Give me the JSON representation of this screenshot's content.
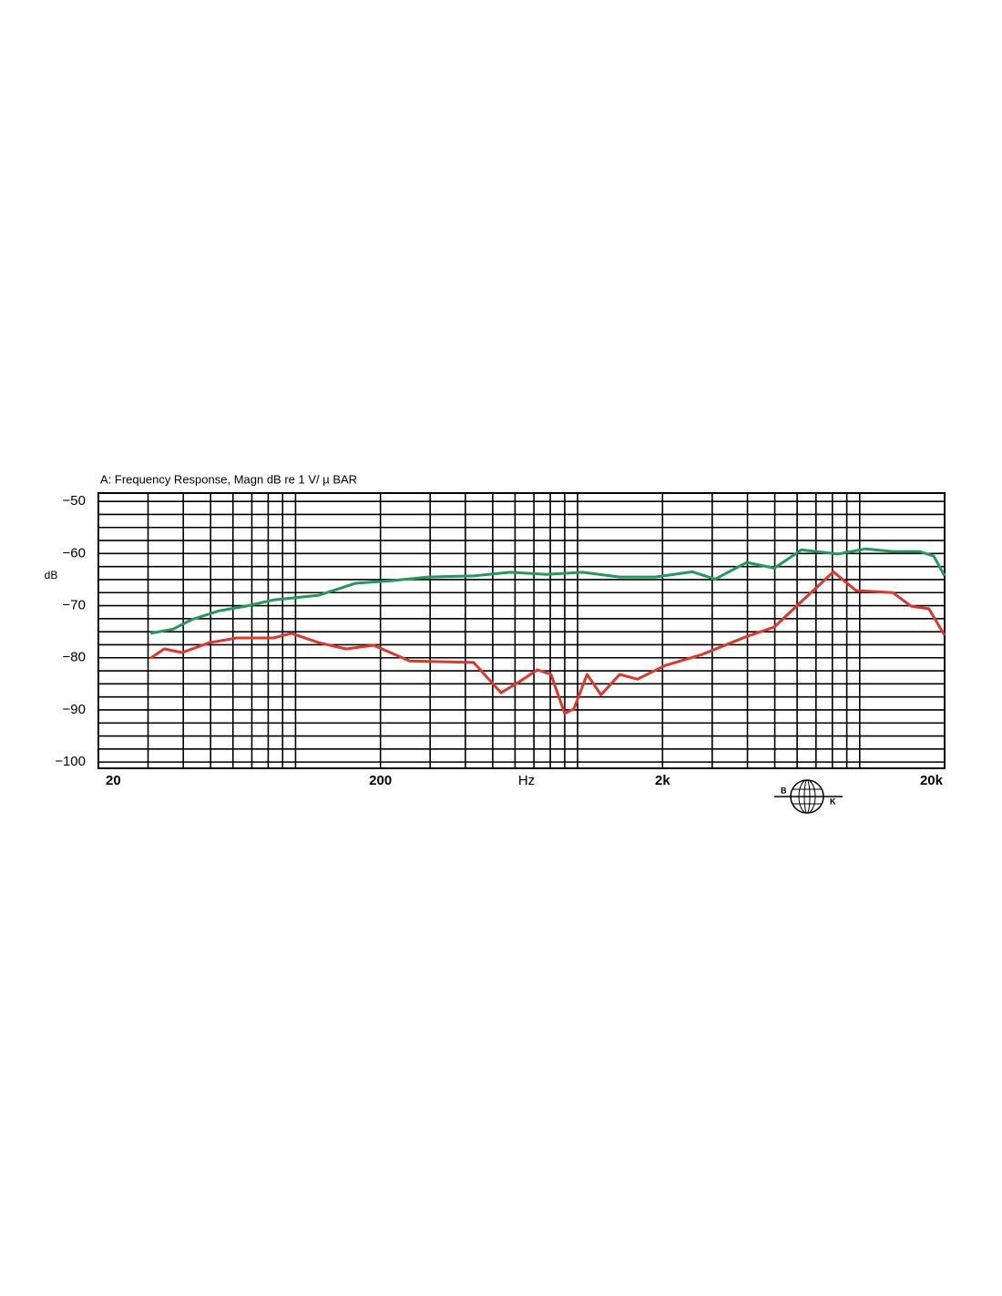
{
  "chart_data": {
    "type": "line",
    "title": "A:  Frequency  Response,  Magn  dB  re     1 V/ µ BAR",
    "ylabel": "dB",
    "xlabel": "Hz",
    "log_x": true,
    "grid": true,
    "xlim": [
      20,
      20000
    ],
    "xticks": [
      20,
      {
        "value": 200,
        "label": "200"
      },
      {
        "value": 2000,
        "label": "2k"
      },
      {
        "value": 20000,
        "label": "20k"
      }
    ],
    "xminor_ticks": [
      30,
      40,
      50,
      60,
      70,
      80,
      90,
      100,
      300,
      400,
      500,
      600,
      700,
      800,
      900,
      1000,
      3000,
      4000,
      5000,
      6000,
      7000,
      8000,
      9000,
      10000
    ],
    "ylim": [
      -101.2,
      -48.4
    ],
    "yticks": [
      {
        "value": -50,
        "label": "−50"
      },
      {
        "value": -60,
        "label": "−60"
      },
      {
        "value": -70,
        "label": "−70"
      },
      {
        "value": -80,
        "label": "−80"
      },
      {
        "value": -90,
        "label": "−90"
      },
      {
        "value": -100,
        "label": "−100"
      }
    ],
    "yminor_ticks": [
      -97.5,
      -95,
      -92.5,
      -87.5,
      -85,
      -82.5,
      -77.5,
      -75,
      -72.5,
      -67.5,
      -65,
      -62.5,
      -57.5,
      -55,
      -52.5
    ],
    "series": [
      {
        "name": "green",
        "color": "#1f9a5c",
        "x": [
          30.6,
          36.8,
          42.7,
          53.4,
          66.7,
          83.4,
          121,
          163,
          219,
          295,
          428,
          577,
          776,
          1040,
          1410,
          1890,
          2550,
          3070,
          3980,
          4980,
          6220,
          8380,
          10500,
          13100,
          16300,
          18300,
          20000
        ],
        "values": [
          -75.3,
          -74.5,
          -72.7,
          -71,
          -70.1,
          -68.9,
          -68,
          -65.7,
          -65.2,
          -64.5,
          -64.3,
          -63.6,
          -64,
          -63.6,
          -64.5,
          -64.5,
          -63.5,
          -64.9,
          -61.7,
          -62.8,
          -59.3,
          -60.1,
          -59.1,
          -59.6,
          -59.6,
          -60.5,
          -64.3
        ]
      },
      {
        "name": "red",
        "color": "#e2352b",
        "x": [
          30.6,
          34.2,
          39.6,
          49.5,
          61.9,
          83.4,
          96.7,
          121,
          151,
          189,
          254,
          428,
          535,
          621,
          720,
          805,
          900,
          970,
          1080,
          1210,
          1410,
          1630,
          2040,
          2750,
          3980,
          4980,
          6220,
          8070,
          9710,
          13100,
          15200,
          17600,
          20000
        ],
        "values": [
          -80.1,
          -78.3,
          -79,
          -77.1,
          -76.2,
          -76.2,
          -75.3,
          -77.1,
          -78.3,
          -77.6,
          -80.6,
          -80.9,
          -86.7,
          -84.6,
          -82.3,
          -83.2,
          -90.7,
          -89.8,
          -83.2,
          -87.1,
          -83.2,
          -84.1,
          -81.5,
          -79.4,
          -75.9,
          -74.1,
          -69.2,
          -63.5,
          -67.1,
          -67.5,
          -70.1,
          -70.6,
          -75.7
        ]
      }
    ],
    "logo": {
      "left": "B",
      "right": "K"
    }
  }
}
